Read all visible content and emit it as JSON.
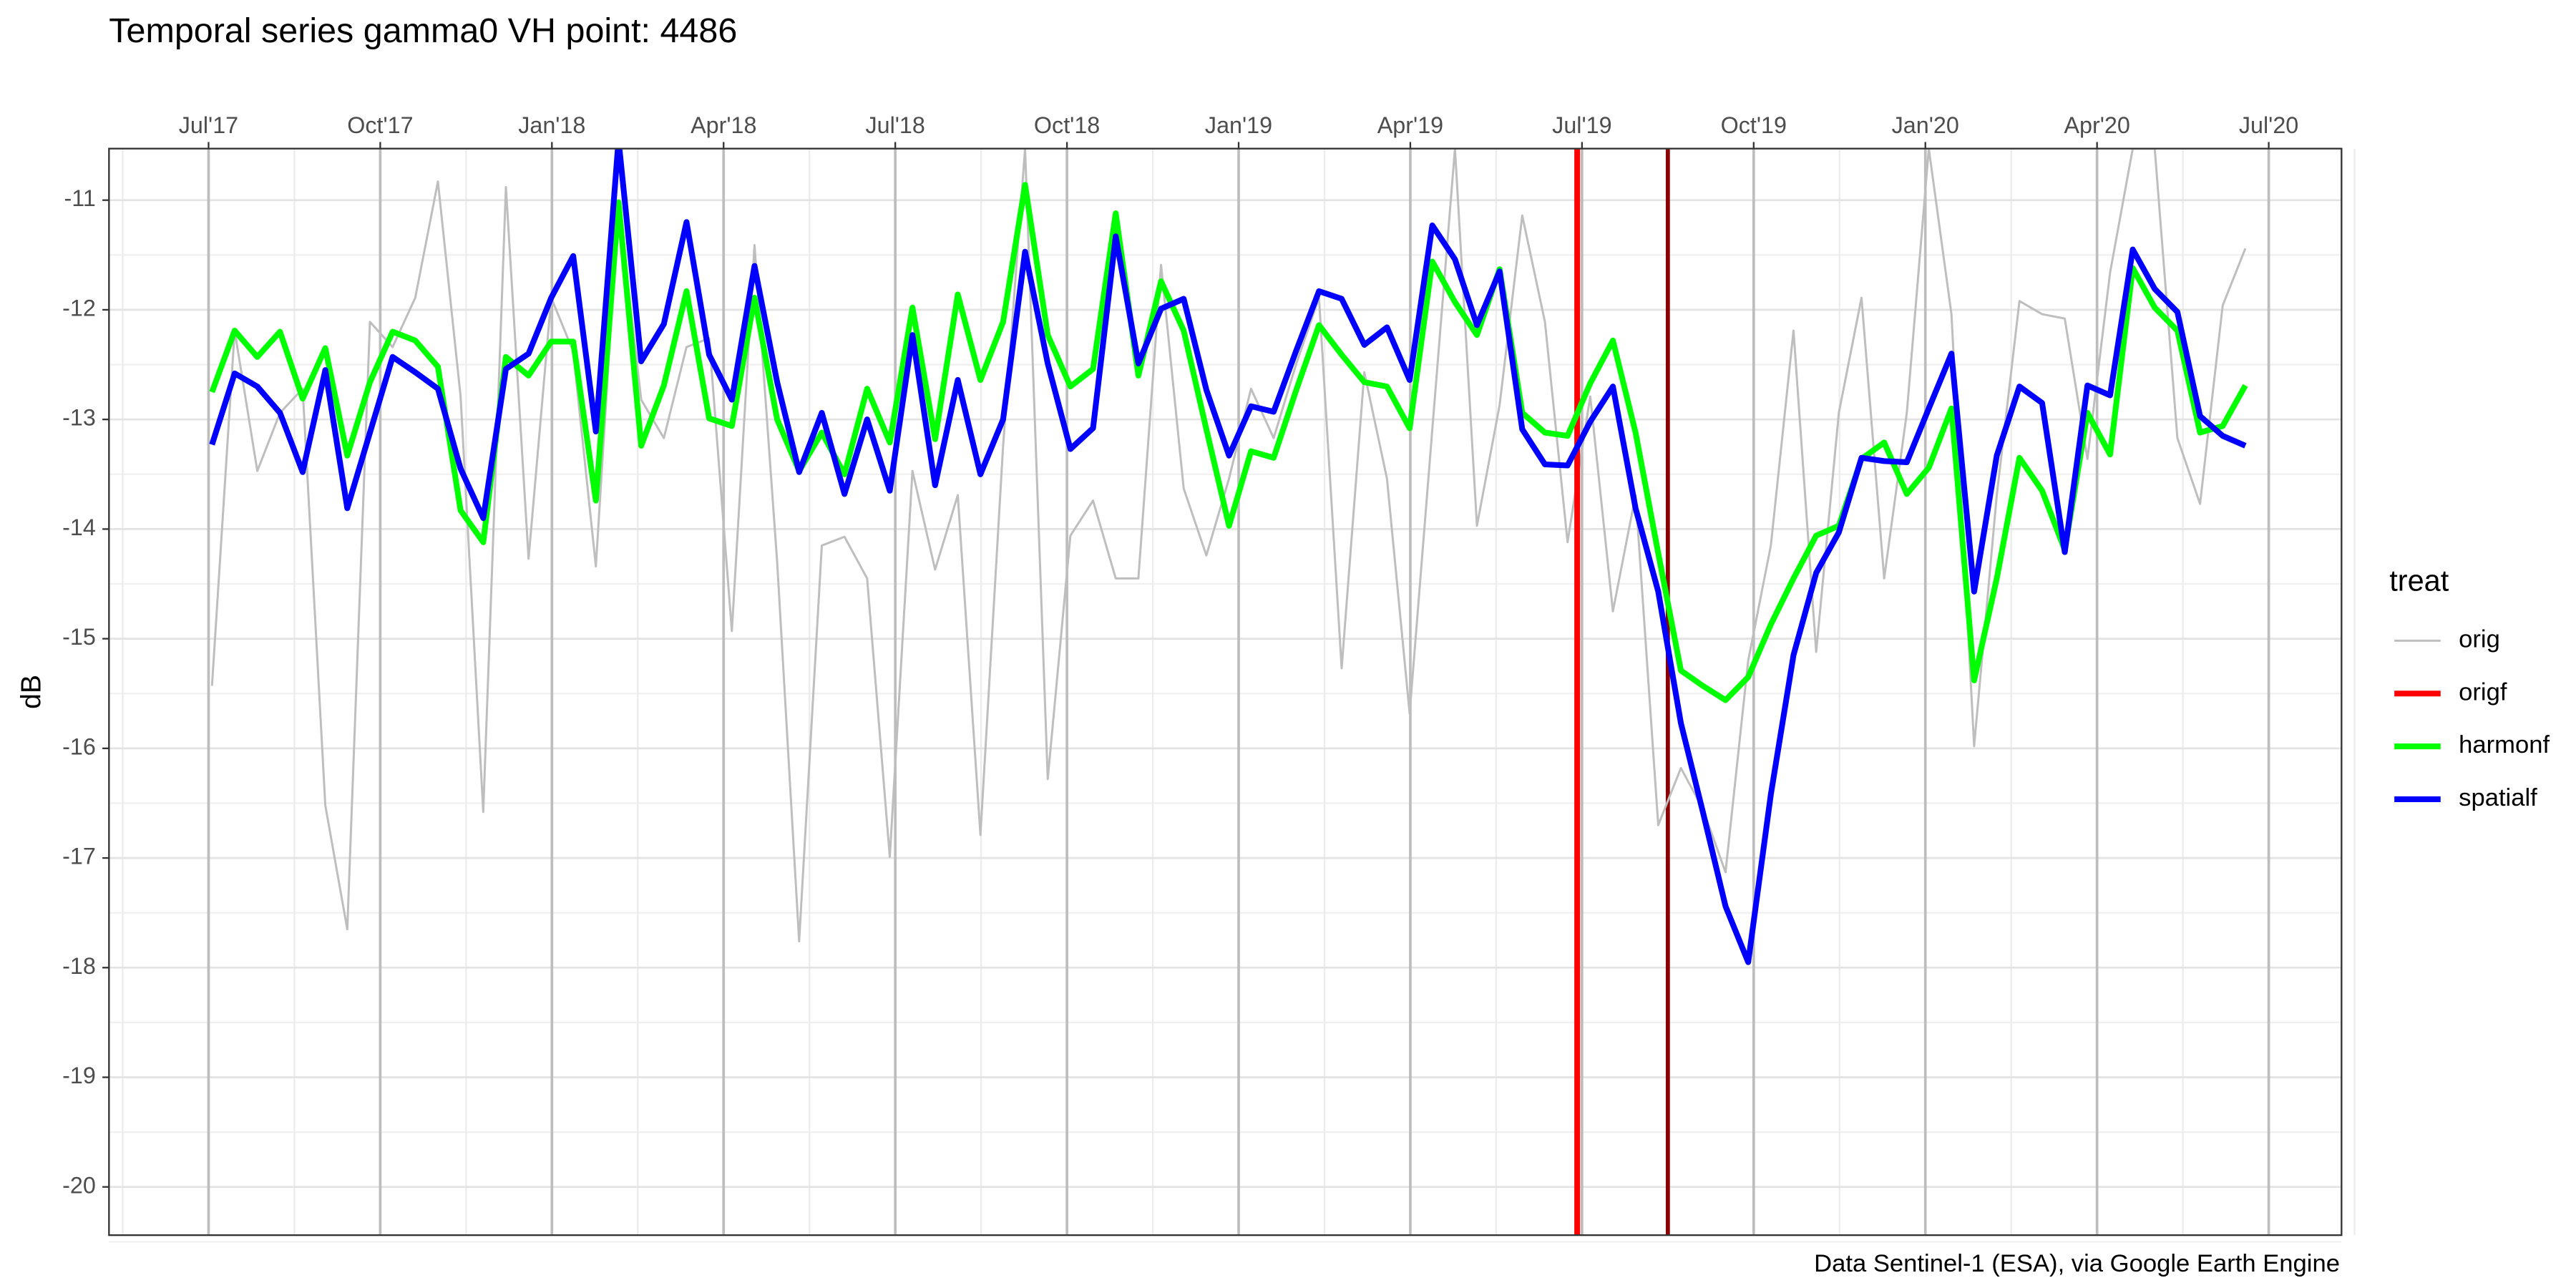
{
  "chart_data": {
    "type": "line",
    "title": "Temporal series gamma0 VH point: 4486",
    "y_label": "dB",
    "caption": "Data Sentinel-1 (ESA), via Google Earth Engine",
    "legend_title": "treat",
    "legend": "right",
    "grid": true,
    "xlim": [
      2017.355,
      2020.606
    ],
    "xticks": [
      {
        "value": 2017.5,
        "label": "Jul'17"
      },
      {
        "value": 2017.75,
        "label": "Oct'17"
      },
      {
        "value": 2018,
        "label": "Jan'18"
      },
      {
        "value": 2018.25,
        "label": "Apr'18"
      },
      {
        "value": 2018.5,
        "label": "Jul'18"
      },
      {
        "value": 2018.75,
        "label": "Oct'18"
      },
      {
        "value": 2019,
        "label": "Jan'19"
      },
      {
        "value": 2019.25,
        "label": "Apr'19"
      },
      {
        "value": 2019.5,
        "label": "Jul'19"
      },
      {
        "value": 2019.75,
        "label": "Oct'19"
      },
      {
        "value": 2020,
        "label": "Jan'20"
      },
      {
        "value": 2020.25,
        "label": "Apr'20"
      },
      {
        "value": 2020.5,
        "label": "Jul'20"
      }
    ],
    "ylim": [
      -20.44,
      -10.53
    ],
    "yticks": [
      -20,
      -19,
      -18,
      -17,
      -16,
      -15,
      -14,
      -13,
      -12,
      -11
    ],
    "x": [
      2017.505,
      2017.538,
      2017.571,
      2017.604,
      2017.637,
      2017.67,
      2017.702,
      2017.735,
      2017.768,
      2017.801,
      2017.834,
      2017.867,
      2017.9,
      2017.933,
      2017.966,
      2017.999,
      2018.031,
      2018.064,
      2018.097,
      2018.13,
      2018.163,
      2018.196,
      2018.229,
      2018.262,
      2018.295,
      2018.328,
      2018.36,
      2018.393,
      2018.426,
      2018.459,
      2018.492,
      2018.525,
      2018.558,
      2018.591,
      2018.624,
      2018.657,
      2018.689,
      2018.722,
      2018.755,
      2018.788,
      2018.821,
      2018.854,
      2018.887,
      2018.92,
      2018.953,
      2018.986,
      2019.018,
      2019.051,
      2019.084,
      2019.117,
      2019.15,
      2019.183,
      2019.216,
      2019.249,
      2019.282,
      2019.315,
      2019.347,
      2019.38,
      2019.413,
      2019.446,
      2019.479,
      2019.512,
      2019.545,
      2019.578,
      2019.611,
      2019.644,
      2019.676,
      2019.709,
      2019.742,
      2019.775,
      2019.808,
      2019.841,
      2019.874,
      2019.907,
      2019.94,
      2019.973,
      2020.005,
      2020.038,
      2020.071,
      2020.104,
      2020.137,
      2020.17,
      2020.203,
      2020.236,
      2020.269,
      2020.302,
      2020.334,
      2020.367,
      2020.4,
      2020.433,
      2020.466
    ],
    "series": [
      {
        "name": "orig",
        "color": "#bebebe",
        "width": 1.3,
        "values": [
          -15.43,
          -12.19,
          -13.47,
          -12.94,
          -12.72,
          -16.52,
          -17.65,
          -12.11,
          -12.34,
          -11.89,
          -10.83,
          -12.79,
          -16.58,
          -10.88,
          -14.27,
          -11.89,
          -12.38,
          -14.34,
          -11.02,
          -12.82,
          -13.17,
          -12.34,
          -12.26,
          -14.93,
          -11.41,
          -14.3,
          -17.76,
          -14.15,
          -14.07,
          -14.45,
          -16.99,
          -13.47,
          -14.37,
          -13.69,
          -16.79,
          -13.24,
          -10.53,
          -16.28,
          -14.06,
          -13.74,
          -14.45,
          -14.45,
          -11.59,
          -13.63,
          -14.24,
          -13.54,
          -12.72,
          -13.17,
          -12.49,
          -11.89,
          -15.27,
          -12.57,
          -13.54,
          -15.68,
          -13.09,
          -10.53,
          -13.97,
          -12.87,
          -11.14,
          -12.11,
          -14.12,
          -12.79,
          -14.75,
          -13.69,
          -16.7,
          -16.18,
          -16.55,
          -17.13,
          -15.2,
          -14.15,
          -12.19,
          -15.12,
          -12.94,
          -11.89,
          -14.45,
          -12.94,
          -10.53,
          -12.04,
          -15.98,
          -13.69,
          -11.92,
          -12.04,
          -12.08,
          -13.36,
          -11.66,
          -10.53,
          -10.53,
          -13.17,
          -13.77,
          -11.96,
          -11.44
        ]
      },
      {
        "name": "origf",
        "color": "#ff0000",
        "width": 3.5,
        "x_line": 2019.493
      },
      {
        "name": "harmonf",
        "color": "#00ff00",
        "width": 3.5,
        "values": [
          -12.75,
          -12.19,
          -12.43,
          -12.2,
          -12.81,
          -12.35,
          -13.33,
          -12.66,
          -12.2,
          -12.28,
          -12.52,
          -13.83,
          -14.12,
          -12.43,
          -12.6,
          -12.29,
          -12.29,
          -13.74,
          -11.02,
          -13.24,
          -12.69,
          -11.83,
          -12.99,
          -13.06,
          -11.89,
          -13.0,
          -13.47,
          -13.12,
          -13.5,
          -12.72,
          -13.21,
          -11.98,
          -13.18,
          -11.86,
          -12.64,
          -12.11,
          -10.86,
          -12.23,
          -12.7,
          -12.54,
          -11.12,
          -12.6,
          -11.74,
          -12.19,
          -13.09,
          -13.97,
          -13.29,
          -13.35,
          -12.73,
          -12.14,
          -12.41,
          -12.66,
          -12.7,
          -13.08,
          -11.56,
          -11.93,
          -12.23,
          -11.63,
          -12.94,
          -13.12,
          -13.15,
          -12.67,
          -12.28,
          -13.12,
          -14.22,
          -15.29,
          -15.43,
          -15.56,
          -15.35,
          -14.87,
          -14.45,
          -14.06,
          -13.97,
          -13.36,
          -13.21,
          -13.68,
          -13.44,
          -12.9,
          -15.38,
          -14.45,
          -13.35,
          -13.65,
          -14.19,
          -12.94,
          -13.32,
          -11.62,
          -11.98,
          -12.19,
          -13.12,
          -13.06,
          -12.69
        ]
      },
      {
        "name": "spatialf",
        "color": "#0000ff",
        "width": 3.5,
        "values": [
          -13.23,
          -12.58,
          -12.7,
          -12.94,
          -13.48,
          -12.55,
          -13.81,
          -13.12,
          -12.43,
          -12.57,
          -12.72,
          -13.45,
          -13.9,
          -12.54,
          -12.4,
          -11.89,
          -11.51,
          -13.11,
          -10.45,
          -12.47,
          -12.13,
          -11.2,
          -12.41,
          -12.82,
          -11.6,
          -12.66,
          -13.48,
          -12.94,
          -13.68,
          -13.0,
          -13.65,
          -12.23,
          -13.6,
          -12.64,
          -13.5,
          -13.0,
          -11.47,
          -12.49,
          -13.27,
          -13.08,
          -11.33,
          -12.49,
          -11.99,
          -11.9,
          -12.73,
          -13.33,
          -12.88,
          -12.93,
          -12.37,
          -11.83,
          -11.9,
          -12.32,
          -12.16,
          -12.64,
          -11.23,
          -11.54,
          -12.14,
          -11.65,
          -13.09,
          -13.41,
          -13.42,
          -13.02,
          -12.7,
          -13.81,
          -14.57,
          -15.77,
          -16.58,
          -17.44,
          -17.95,
          -16.42,
          -15.15,
          -14.4,
          -14.03,
          -13.35,
          -13.38,
          -13.39,
          -12.9,
          -12.4,
          -14.57,
          -13.33,
          -12.7,
          -12.85,
          -14.21,
          -12.69,
          -12.78,
          -11.45,
          -11.81,
          -12.02,
          -12.97,
          -13.15,
          -13.24
        ]
      }
    ],
    "vlines": [
      {
        "x": 2019.625,
        "color": "#8b0000"
      }
    ]
  }
}
